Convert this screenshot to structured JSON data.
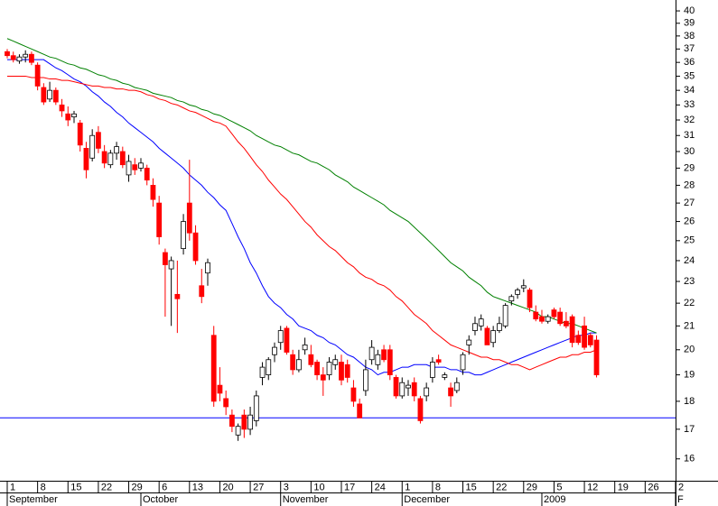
{
  "chart_data": {
    "type": "candlestick",
    "categories": [
      "1",
      null,
      null,
      null,
      null,
      "8",
      null,
      null,
      null,
      null,
      "15",
      null,
      null,
      null,
      null,
      "22",
      null,
      null,
      null,
      null,
      "29",
      null,
      null,
      null,
      null,
      "6",
      null,
      null,
      null,
      null,
      "13",
      null,
      null,
      null,
      null,
      "20",
      null,
      null,
      null,
      null,
      "27",
      null,
      null,
      null,
      null,
      "3",
      null,
      null,
      null,
      null,
      "10",
      null,
      null,
      null,
      null,
      "17",
      null,
      null,
      null,
      null,
      "24",
      null,
      null,
      null,
      null,
      "1",
      null,
      null,
      null,
      null,
      "8",
      null,
      null,
      null,
      null,
      "15",
      null,
      null,
      null,
      null,
      "22",
      null,
      null,
      null,
      null,
      "29",
      null,
      null,
      null,
      null,
      "5",
      null,
      null,
      null,
      null,
      "12",
      null,
      null,
      null,
      null,
      "19",
      null,
      null,
      null,
      null,
      "26",
      null,
      null,
      null,
      null,
      "2"
    ],
    "months": [
      "September",
      null,
      null,
      null,
      null,
      null,
      null,
      null,
      null,
      null,
      null,
      null,
      null,
      null,
      null,
      null,
      null,
      null,
      null,
      null,
      null,
      null,
      "October",
      null,
      null,
      null,
      null,
      null,
      null,
      null,
      null,
      null,
      null,
      null,
      null,
      null,
      null,
      null,
      null,
      null,
      null,
      null,
      null,
      null,
      null,
      "November",
      null,
      null,
      null,
      null,
      null,
      null,
      null,
      null,
      null,
      null,
      null,
      null,
      null,
      null,
      null,
      null,
      null,
      null,
      null,
      "December",
      null,
      null,
      null,
      null,
      null,
      null,
      null,
      null,
      null,
      null,
      null,
      null,
      null,
      null,
      null,
      null,
      null,
      null,
      null,
      null,
      null,
      null,
      "2009",
      null,
      null,
      null,
      null,
      null,
      null,
      null,
      null,
      null,
      null,
      null,
      null,
      null,
      null,
      null,
      null,
      null,
      null,
      null,
      null,
      null,
      "F"
    ],
    "open": [
      36.8,
      36.5,
      36.1,
      36.4,
      36.6,
      35.8,
      34.2,
      33.4,
      34.0,
      33.0,
      32.4,
      32.2,
      31.8,
      30.2,
      29.6,
      31.2,
      30.0,
      29.2,
      29.9,
      30.0,
      28.6,
      29.2,
      29.0,
      29.0,
      28.0,
      27.0,
      24.4,
      23.6,
      22.4,
      24.6,
      27.0,
      25.4,
      22.8,
      23.4,
      20.6,
      18.6,
      18.1,
      17.5,
      16.8,
      17.5,
      17.0,
      17.3,
      18.9,
      19.0,
      19.8,
      20.3,
      20.9,
      19.8,
      19.2,
      20.0,
      19.8,
      19.5,
      19.0,
      19.0,
      19.4,
      19.5,
      19.4,
      18.5,
      17.9,
      18.4,
      19.6,
      19.4,
      20.0,
      20.0,
      18.9,
      18.2,
      18.5,
      18.7,
      18.1,
      18.2,
      18.9,
      19.6,
      18.9,
      18.5,
      18.4,
      19.2,
      20.2,
      20.8,
      21.0,
      20.9,
      20.3,
      20.8,
      21.0,
      22.1,
      22.4,
      22.7,
      22.6,
      21.6,
      21.4,
      21.2,
      21.7,
      21.6,
      21.2,
      21.4,
      20.6,
      21.0,
      20.6,
      20.4,
      null,
      null,
      null,
      null,
      null,
      null,
      null,
      null,
      null,
      null,
      null,
      null,
      null
    ],
    "high": [
      37.0,
      36.8,
      36.6,
      36.9,
      36.8,
      36.0,
      34.5,
      34.6,
      34.2,
      33.4,
      32.9,
      32.6,
      32.0,
      30.6,
      31.4,
      31.6,
      30.4,
      30.1,
      30.6,
      30.3,
      29.8,
      29.6,
      29.6,
      29.2,
      28.4,
      27.4,
      24.6,
      24.2,
      24.0,
      26.4,
      29.5,
      25.8,
      23.6,
      24.1,
      21.0,
      19.3,
      18.4,
      17.7,
      17.2,
      17.7,
      17.8,
      18.4,
      19.5,
      19.7,
      20.3,
      21.0,
      21.0,
      20.0,
      20.0,
      20.5,
      20.2,
      19.6,
      19.3,
      19.7,
      19.8,
      19.8,
      19.6,
      18.8,
      18.1,
      19.6,
      20.4,
      20.0,
      20.2,
      20.2,
      19.0,
      18.9,
      18.8,
      18.9,
      18.2,
      18.7,
      19.7,
      19.8,
      19.1,
      18.7,
      18.9,
      19.9,
      20.6,
      21.4,
      21.5,
      21.0,
      21.0,
      21.4,
      22.0,
      22.4,
      22.7,
      23.1,
      22.7,
      21.9,
      21.7,
      21.5,
      21.8,
      21.8,
      21.6,
      21.5,
      20.8,
      21.4,
      20.7,
      20.6,
      null,
      null,
      null,
      null,
      null,
      null,
      null,
      null,
      null,
      null,
      null,
      null,
      null
    ],
    "low": [
      36.3,
      36.0,
      35.9,
      36.0,
      35.8,
      34.0,
      33.0,
      33.2,
      33.0,
      32.2,
      31.6,
      31.8,
      30.0,
      28.4,
      29.4,
      29.9,
      29.0,
      29.0,
      29.5,
      29.0,
      28.2,
      28.6,
      28.8,
      28.0,
      26.8,
      24.8,
      21.4,
      21.0,
      20.7,
      24.3,
      25.0,
      23.8,
      22.0,
      22.8,
      17.8,
      18.0,
      17.5,
      16.9,
      16.6,
      16.7,
      16.8,
      17.1,
      18.6,
      18.8,
      19.5,
      20.0,
      19.8,
      19.0,
      19.1,
      19.8,
      19.3,
      18.8,
      18.2,
      18.8,
      19.2,
      18.6,
      18.7,
      17.8,
      17.4,
      18.2,
      19.4,
      19.2,
      19.5,
      18.8,
      18.1,
      18.1,
      18.2,
      18.0,
      17.2,
      18.0,
      18.7,
      19.4,
      18.8,
      17.8,
      18.3,
      19.0,
      19.8,
      20.6,
      20.8,
      20.2,
      20.1,
      20.7,
      20.9,
      21.9,
      22.2,
      22.5,
      21.6,
      21.2,
      21.1,
      21.1,
      21.3,
      21.0,
      20.9,
      20.1,
      20.2,
      20.0,
      20.1,
      18.9,
      null,
      null,
      null,
      null,
      null,
      null,
      null,
      null,
      null,
      null,
      null,
      null,
      null
    ],
    "close": [
      36.5,
      36.2,
      36.4,
      36.6,
      36.0,
      34.3,
      33.2,
      34.0,
      33.2,
      32.6,
      32.0,
      32.4,
      30.4,
      28.9,
      31.0,
      30.2,
      29.3,
      29.9,
      30.3,
      29.2,
      29.4,
      28.9,
      29.3,
      28.3,
      27.2,
      25.2,
      23.8,
      24.0,
      22.2,
      26.0,
      25.4,
      24.0,
      22.3,
      23.9,
      18.0,
      18.3,
      17.8,
      17.1,
      17.1,
      17.0,
      17.5,
      18.2,
      19.3,
      19.6,
      20.1,
      20.8,
      19.9,
      19.2,
      19.6,
      20.2,
      19.4,
      19.0,
      18.8,
      19.5,
      19.6,
      18.8,
      18.9,
      18.0,
      17.4,
      19.2,
      20.1,
      19.8,
      19.6,
      19.0,
      18.2,
      18.7,
      18.6,
      18.2,
      17.3,
      18.5,
      19.5,
      19.5,
      19.0,
      18.2,
      18.7,
      19.8,
      20.4,
      21.1,
      21.3,
      20.2,
      20.8,
      21.1,
      21.9,
      22.3,
      22.6,
      22.8,
      21.8,
      21.3,
      21.2,
      21.4,
      21.4,
      21.1,
      21.0,
      20.3,
      20.3,
      20.1,
      20.2,
      19.0,
      null,
      null,
      null,
      null,
      null,
      null,
      null,
      null,
      null,
      null,
      null,
      null,
      null
    ],
    "up_color": "#ffffff",
    "down_color": "#ff0000",
    "series": [
      {
        "color": "#0000ff",
        "values": [
          36.2,
          36.2,
          36.2,
          36.2,
          36.2,
          36.2,
          36.2,
          35.9,
          35.6,
          35.4,
          35.1,
          34.8,
          34.6,
          34.3,
          33.9,
          33.6,
          33.2,
          32.9,
          32.5,
          32.2,
          31.8,
          31.5,
          31.2,
          30.9,
          30.6,
          30.2,
          29.9,
          29.6,
          29.3,
          29.0,
          28.6,
          28.3,
          28.0,
          27.6,
          27.3,
          26.9,
          26.6,
          25.9,
          25.2,
          24.6,
          23.9,
          23.4,
          22.8,
          22.3,
          22.0,
          21.8,
          21.5,
          21.3,
          21.0,
          20.9,
          20.8,
          20.6,
          20.5,
          20.3,
          20.2,
          20.0,
          19.8,
          19.7,
          19.5,
          19.3,
          19.2,
          19.0,
          19.1,
          19.1,
          19.2,
          19.3,
          19.3,
          19.4,
          19.4,
          19.4,
          19.3,
          19.3,
          19.3,
          19.2,
          19.2,
          19.1,
          19.1,
          19.0,
          19.0,
          19.1,
          19.2,
          19.3,
          19.4,
          19.5,
          19.6,
          19.7,
          19.8,
          19.9,
          20.0,
          20.1,
          20.2,
          20.3,
          20.4,
          20.5,
          20.6,
          20.6,
          20.7,
          20.7,
          null,
          null,
          null,
          null,
          null,
          null,
          null,
          null,
          null,
          null,
          null,
          null,
          null
        ]
      },
      {
        "color": "#ff0000",
        "values": [
          35.0,
          35.0,
          35.0,
          35.0,
          34.9,
          34.9,
          34.9,
          34.8,
          34.8,
          34.7,
          34.7,
          34.6,
          34.5,
          34.4,
          34.3,
          34.3,
          34.2,
          34.2,
          34.1,
          34.1,
          34.0,
          34.0,
          33.9,
          33.7,
          33.6,
          33.4,
          33.3,
          33.1,
          33.0,
          32.8,
          32.6,
          32.5,
          32.3,
          32.1,
          31.9,
          31.8,
          31.6,
          31.1,
          30.6,
          30.2,
          29.7,
          29.2,
          28.8,
          28.3,
          27.9,
          27.5,
          27.2,
          26.8,
          26.4,
          26.0,
          25.7,
          25.3,
          25.0,
          24.7,
          24.5,
          24.2,
          23.9,
          23.7,
          23.4,
          23.2,
          23.1,
          22.9,
          22.8,
          22.6,
          22.3,
          22.1,
          21.8,
          21.5,
          21.3,
          21.1,
          20.8,
          20.6,
          20.4,
          20.2,
          20.1,
          20.0,
          19.9,
          19.8,
          19.7,
          19.7,
          19.6,
          19.6,
          19.5,
          19.4,
          19.4,
          19.3,
          19.2,
          19.3,
          19.4,
          19.5,
          19.6,
          19.7,
          19.7,
          19.8,
          19.8,
          19.9,
          19.9,
          20.0,
          null,
          null,
          null,
          null,
          null,
          null,
          null,
          null,
          null,
          null,
          null,
          null,
          null
        ]
      },
      {
        "color": "#008000",
        "values": [
          37.8,
          37.6,
          37.4,
          37.2,
          37.0,
          36.8,
          36.6,
          36.4,
          36.3,
          36.1,
          35.9,
          35.8,
          35.6,
          35.5,
          35.3,
          35.1,
          35.0,
          34.8,
          34.7,
          34.5,
          34.4,
          34.2,
          34.1,
          34.0,
          33.8,
          33.7,
          33.6,
          33.5,
          33.3,
          33.2,
          33.0,
          32.9,
          32.7,
          32.6,
          32.4,
          32.3,
          32.1,
          31.9,
          31.7,
          31.5,
          31.3,
          31.0,
          30.8,
          30.6,
          30.4,
          30.3,
          30.1,
          29.9,
          29.8,
          29.6,
          29.4,
          29.3,
          29.1,
          28.9,
          28.6,
          28.4,
          28.2,
          27.9,
          27.7,
          27.5,
          27.3,
          27.1,
          26.9,
          26.6,
          26.4,
          26.2,
          26.0,
          25.7,
          25.4,
          25.1,
          24.8,
          24.5,
          24.2,
          23.9,
          23.7,
          23.5,
          23.2,
          23.0,
          22.8,
          22.5,
          22.3,
          22.2,
          22.1,
          22.0,
          21.9,
          21.8,
          21.7,
          21.6,
          21.4,
          21.4,
          21.3,
          21.2,
          21.1,
          21.1,
          21.0,
          20.9,
          20.8,
          20.7,
          null,
          null,
          null,
          null,
          null,
          null,
          null,
          null,
          null,
          null,
          null,
          null,
          null
        ]
      }
    ],
    "hline": {
      "value": 17.4,
      "color": "#0000ff"
    },
    "ylim": [
      15.3,
      40.9
    ],
    "yticks": [
      16,
      17,
      18,
      19,
      20,
      21,
      22,
      23,
      24,
      25,
      26,
      27,
      28,
      29,
      30,
      31,
      32,
      33,
      34,
      35,
      36,
      37,
      38,
      39,
      40
    ],
    "log_scale": true,
    "grid": false
  }
}
